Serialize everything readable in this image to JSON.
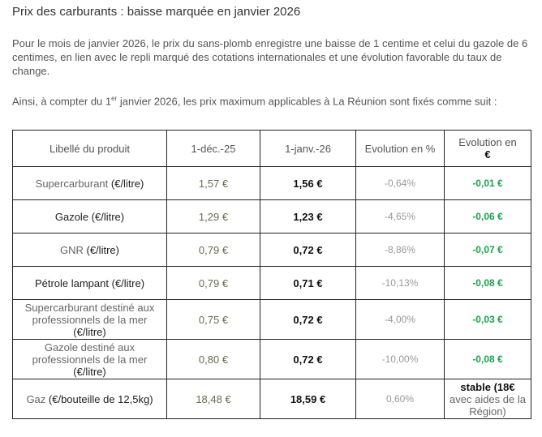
{
  "title": "Prix des carburants : baisse marquée en janvier 2026",
  "intro": "Pour le mois de janvier 2026, le prix du sans-plomb enregistre une baisse de 1 centime et celui du gazole de 6 centimes, en lien avec le repli marqué des cotations internationales et une évolution favorable du taux de change.",
  "lead": {
    "before": "Ainsi, à compter du 1",
    "sup": "er",
    "after": " janvier 2026, les prix maximum applicables à La Réunion sont fixés comme suit :"
  },
  "table": {
    "headers": {
      "product": "Libellé du produit",
      "dec": "1-déc.-25",
      "jan": "1-janv.-26",
      "pct": "Evolution en %",
      "eur_a": "Evolution en",
      "eur_b": "€"
    },
    "rows": [
      {
        "name": "Supercarburant ",
        "unit": "(€/litre)",
        "dec": "1,57 €",
        "jan": "1,56 €",
        "pct": "-0,64%",
        "eur": "-0,01 €"
      },
      {
        "name": "Gazole ",
        "unit": "(€/litre)",
        "dec": "1,29 €",
        "jan": "1,23 €",
        "pct": "-4,65%",
        "eur": "-0,06 €"
      },
      {
        "name": "GNR ",
        "unit": "(€/litre)",
        "dec": "0,79 €",
        "jan": "0,72 €",
        "pct": "-8,86%",
        "eur": "-0,07 €"
      },
      {
        "name": "Pétrole lampant ",
        "unit": "(€/litre)",
        "dec": "0,79 €",
        "jan": "0,71 €",
        "pct": "-10,13%",
        "eur": "-0,08 €"
      },
      {
        "name": "Supercarburant destiné aux professionnels de la mer ",
        "unit": "(€/litre)",
        "dec": "0,75 €",
        "jan": "0,72 €",
        "pct": "-4,00%",
        "eur": "-0,03 €"
      },
      {
        "name": "Gazole destiné aux professionnels de la mer ",
        "unit": "(€/litre)",
        "dec": "0,80 €",
        "jan": "0,72 €",
        "pct": "-10,00%",
        "eur": "-0,08 €"
      },
      {
        "name": "Gaz ",
        "unit": "(€/bouteille de 12,5kg)",
        "dec": "18,48 €",
        "jan": "18,59 €",
        "pct": "0,60%",
        "eur_bold": "stable (18€",
        "eur_rest": "avec aides de la Région)"
      }
    ]
  }
}
